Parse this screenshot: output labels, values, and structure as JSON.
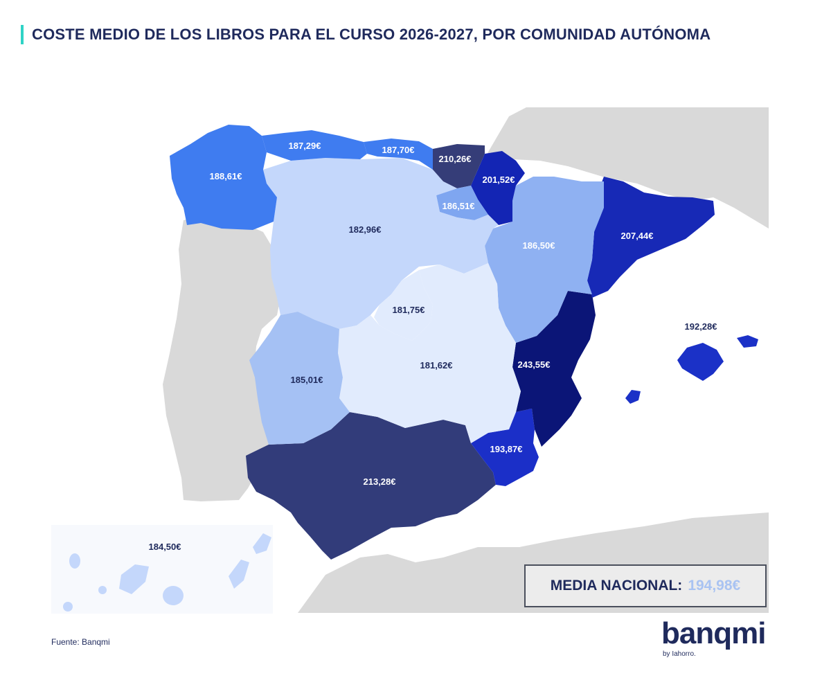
{
  "title": "COSTE MEDIO DE LOS LIBROS PARA EL CURSO 2026-2027, POR COMUNIDAD AUTÓNOMA",
  "colors": {
    "accent": "#2fd3c6",
    "title": "#1f2a5c",
    "background_land": "#d9d9d9",
    "highlight_value": "#a9c3f2"
  },
  "regions": [
    {
      "name": "Galicia",
      "value": "188,61€",
      "color": "#3f7cf0",
      "label_color": "#ffffff"
    },
    {
      "name": "Asturias",
      "value": "187,29€",
      "color": "#3f7cf0",
      "label_color": "#ffffff"
    },
    {
      "name": "Cantabria",
      "value": "187,70€",
      "color": "#3f7cf0",
      "label_color": "#ffffff"
    },
    {
      "name": "País Vasco",
      "value": "210,26€",
      "color": "#353d78",
      "label_color": "#ffffff"
    },
    {
      "name": "Navarra",
      "value": "201,52€",
      "color": "#1325b4",
      "label_color": "#ffffff"
    },
    {
      "name": "La Rioja",
      "value": "186,51€",
      "color": "#7fa6f0",
      "label_color": "#ffffff"
    },
    {
      "name": "Castilla y León",
      "value": "182,96€",
      "color": "#c4d7fb",
      "label_color": "#1f2a5c"
    },
    {
      "name": "Aragón",
      "value": "186,50€",
      "color": "#8fb1f2",
      "label_color": "#ffffff"
    },
    {
      "name": "Cataluña",
      "value": "207,44€",
      "color": "#1729b6",
      "label_color": "#ffffff"
    },
    {
      "name": "Madrid",
      "value": "181,75€",
      "color": "#e1ebfd",
      "label_color": "#1f2a5c"
    },
    {
      "name": "Castilla-La Mancha",
      "value": "181,62€",
      "color": "#e1ebfd",
      "label_color": "#1f2a5c"
    },
    {
      "name": "Extremadura",
      "value": "185,01€",
      "color": "#a5c1f4",
      "label_color": "#1f2a5c"
    },
    {
      "name": "Comunidad Valenciana",
      "value": "243,55€",
      "color": "#0b1577",
      "label_color": "#ffffff"
    },
    {
      "name": "Islas Baleares",
      "value": "192,28€",
      "color": "#1b31c7",
      "label_color": "#1f2a5c"
    },
    {
      "name": "Región de Murcia",
      "value": "193,87€",
      "color": "#1b2fc8",
      "label_color": "#ffffff"
    },
    {
      "name": "Andalucía",
      "value": "213,28€",
      "color": "#323c7a",
      "label_color": "#ffffff"
    },
    {
      "name": "Canarias",
      "value": "184,50€",
      "color": "#c4d7fb",
      "label_color": "#1f2a5c"
    }
  ],
  "average": {
    "label": "MEDIA NACIONAL:",
    "value": "194,98€"
  },
  "source": "Fuente: Banqmi",
  "logo": {
    "word": "banqmi",
    "tagline": "by Iahorro."
  }
}
